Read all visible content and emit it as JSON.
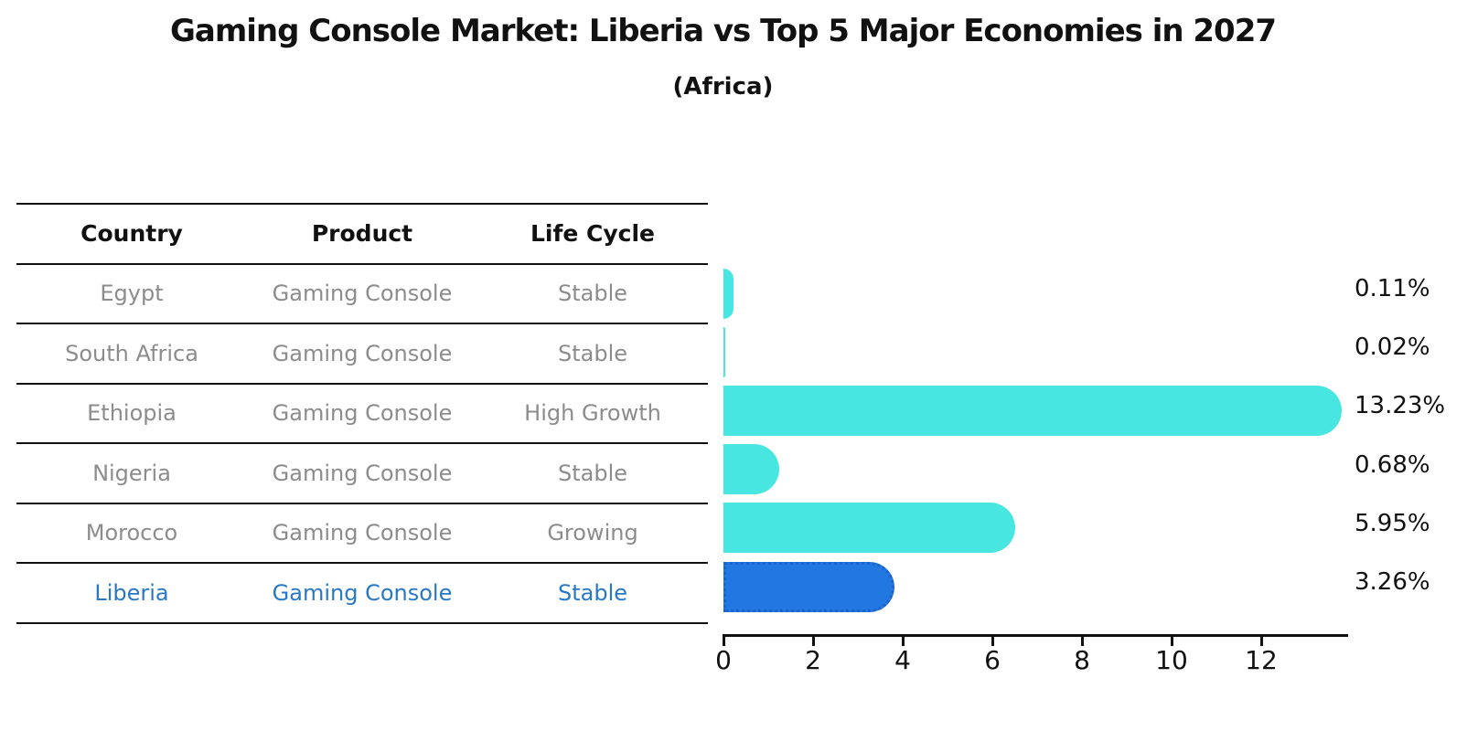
{
  "title": "Gaming Console Market: Liberia vs Top 5 Major Economies in 2027",
  "subtitle": "(Africa)",
  "table": {
    "headers": [
      "Country",
      "Product",
      "Life Cycle"
    ],
    "rows": [
      {
        "country": "Egypt",
        "product": "Gaming Console",
        "life_cycle": "Stable",
        "highlight": false
      },
      {
        "country": "South Africa",
        "product": "Gaming Console",
        "life_cycle": "Stable",
        "highlight": false
      },
      {
        "country": "Ethiopia",
        "product": "Gaming Console",
        "life_cycle": "High Growth",
        "highlight": false
      },
      {
        "country": "Nigeria",
        "product": "Gaming Console",
        "life_cycle": "Stable",
        "highlight": false
      },
      {
        "country": "Morocco",
        "product": "Gaming Console",
        "life_cycle": "Growing",
        "highlight": false
      },
      {
        "country": "Liberia",
        "product": "Gaming Console",
        "life_cycle": "Stable",
        "highlight": true
      }
    ]
  },
  "chart_data": {
    "type": "bar",
    "orientation": "horizontal",
    "title": "Gaming Console Market: Liberia vs Top 5 Major Economies in 2027",
    "subtitle": "(Africa)",
    "categories": [
      "Egypt",
      "South Africa",
      "Ethiopia",
      "Nigeria",
      "Morocco",
      "Liberia"
    ],
    "values": [
      0.11,
      0.02,
      13.23,
      0.68,
      5.95,
      3.26
    ],
    "value_labels": [
      "0.11%",
      "0.02%",
      "13.23%",
      "0.68%",
      "5.95%",
      "3.26%"
    ],
    "xlabel": "",
    "ylabel": "",
    "xlim": [
      0,
      13.9
    ],
    "x_ticks": [
      0,
      2,
      4,
      6,
      8,
      10,
      12
    ],
    "grid": false,
    "legend": "none",
    "bar_color": "#47e6e1",
    "highlight_index": 5,
    "highlight_bar_color": "#2277e0",
    "highlight_bar_border_color": "#1b63cd",
    "highlight_text_color": "#2878c8",
    "muted_text_color": "#8c8c8c",
    "axis_color": "#111111"
  }
}
